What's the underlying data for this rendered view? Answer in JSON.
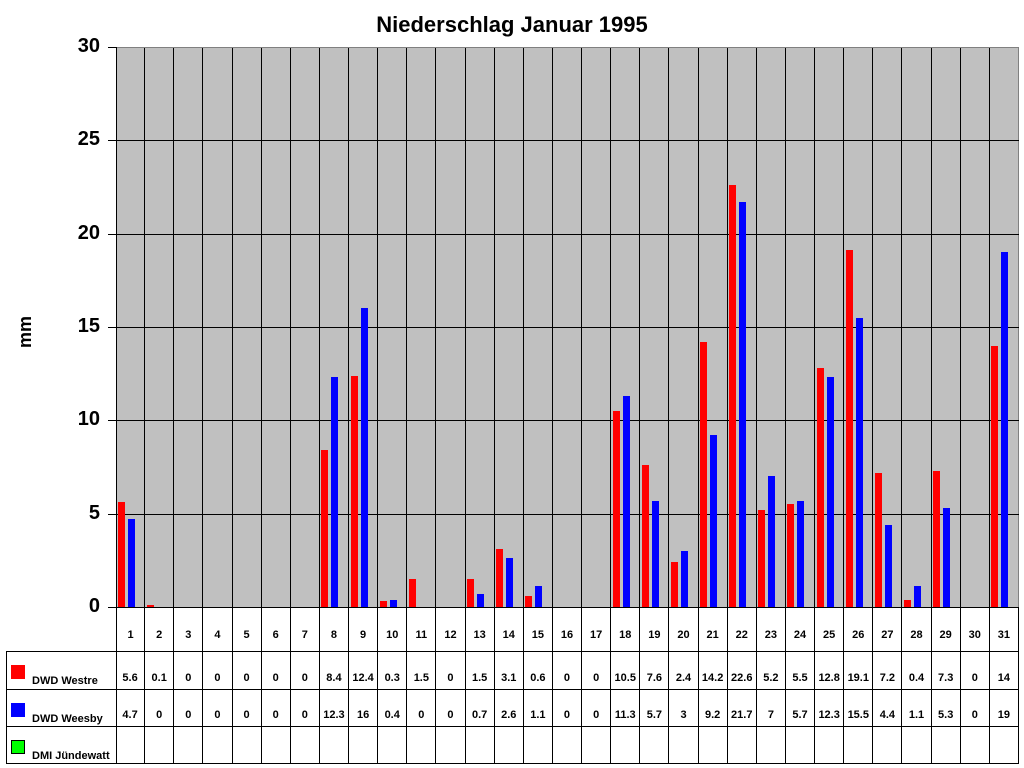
{
  "chart_data": {
    "type": "bar",
    "title": "Niederschlag Januar 1995",
    "xlabel": "",
    "ylabel": "mm",
    "ylim": [
      0,
      30
    ],
    "yticks": [
      0,
      5,
      10,
      15,
      20,
      25,
      30
    ],
    "grid": true,
    "legend_position": "data-table-left",
    "categories": [
      "1",
      "2",
      "3",
      "4",
      "5",
      "6",
      "7",
      "8",
      "9",
      "10",
      "11",
      "12",
      "13",
      "14",
      "15",
      "16",
      "17",
      "18",
      "19",
      "20",
      "21",
      "22",
      "23",
      "24",
      "25",
      "26",
      "27",
      "28",
      "29",
      "30",
      "31"
    ],
    "series": [
      {
        "name": "DWD Westre",
        "color": "#ff0000",
        "values": [
          5.6,
          0.1,
          0,
          0,
          0,
          0,
          0,
          8.4,
          12.4,
          0.3,
          1.5,
          0,
          1.5,
          3.1,
          0.6,
          0,
          0,
          10.5,
          7.6,
          2.4,
          14.2,
          22.6,
          5.2,
          5.5,
          12.8,
          19.1,
          7.2,
          0.4,
          7.3,
          0,
          14
        ]
      },
      {
        "name": "DWD Weesby",
        "color": "#0000ff",
        "values": [
          4.7,
          0,
          0,
          0,
          0,
          0,
          0,
          12.3,
          16,
          0.4,
          0,
          0,
          0.7,
          2.6,
          1.1,
          0,
          0,
          11.3,
          5.7,
          3,
          9.2,
          21.7,
          7,
          5.7,
          12.3,
          15.5,
          4.4,
          1.1,
          5.3,
          0,
          19
        ]
      },
      {
        "name": "DMI Jündewatt",
        "color": "#00ff00",
        "values": [
          null,
          null,
          null,
          null,
          null,
          null,
          null,
          null,
          null,
          null,
          null,
          null,
          null,
          null,
          null,
          null,
          null,
          null,
          null,
          null,
          null,
          null,
          null,
          null,
          null,
          null,
          null,
          null,
          null,
          null,
          null
        ]
      }
    ]
  },
  "table_display": {
    "DWD Westre": [
      "5.6",
      "0.1",
      "0",
      "0",
      "0",
      "0",
      "0",
      "8.4",
      "12.4",
      "0.3",
      "1.5",
      "0",
      "1.5",
      "3.1",
      "0.6",
      "0",
      "0",
      "10.5",
      "7.6",
      "2.4",
      "14.2",
      "22.6",
      "5.2",
      "5.5",
      "12.8",
      "19.1",
      "7.2",
      "0.4",
      "7.3",
      "0",
      "14"
    ],
    "DWD Weesby": [
      "4.7",
      "0",
      "0",
      "0",
      "0",
      "0",
      "0",
      "12.3",
      "16",
      "0.4",
      "0",
      "0",
      "0.7",
      "2.6",
      "1.1",
      "0",
      "0",
      "11.3",
      "5.7",
      "3",
      "9.2",
      "21.7",
      "7",
      "5.7",
      "12.3",
      "15.5",
      "4.4",
      "1.1",
      "5.3",
      "0",
      "19"
    ],
    "DMI Jündewatt": [
      "",
      "",
      "",
      "",
      "",
      "",
      "",
      "",
      "",
      "",
      "",
      "",
      "",
      "",
      "",
      "",
      "",
      "",
      "",
      "",
      "",
      "",
      "",
      "",
      "",
      "",
      "",
      "",
      "",
      "",
      ""
    ]
  },
  "plot_background": "#c0c0c0"
}
